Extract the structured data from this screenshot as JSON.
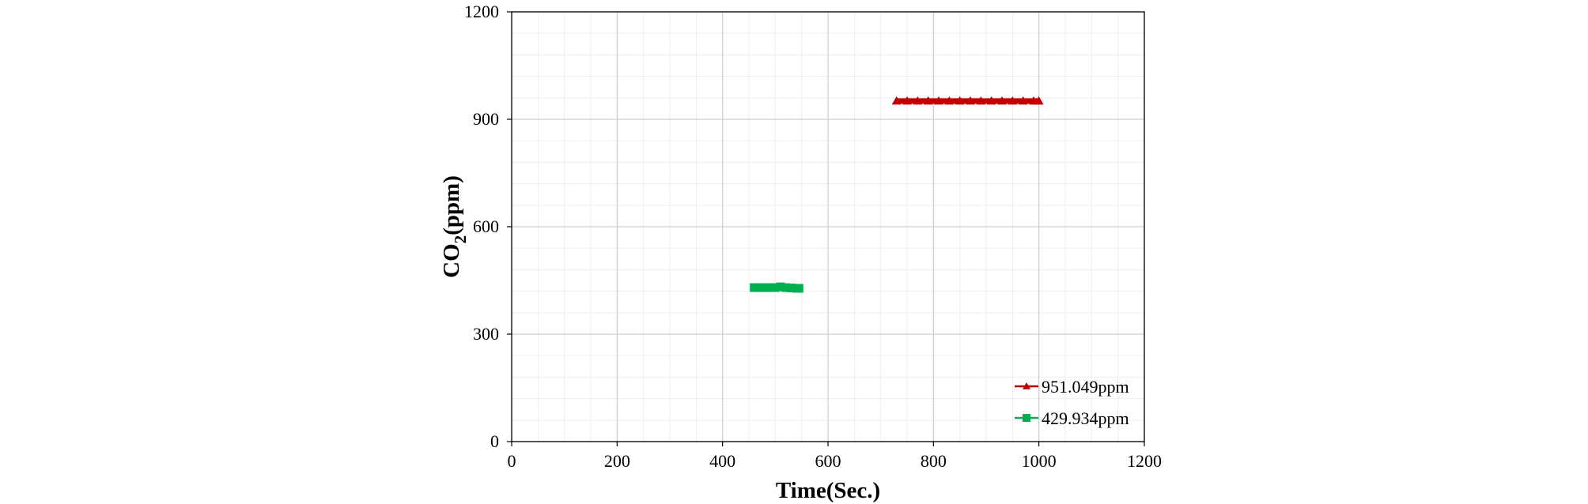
{
  "chart_data": {
    "type": "scatter",
    "xlabel": "Time(Sec.)",
    "ylabel": "CO2(ppm)",
    "ylabel_main": "CO",
    "ylabel_sub": "2",
    "ylabel_tail": "(ppm)",
    "xlim": [
      0,
      1200
    ],
    "ylim": [
      0,
      1200
    ],
    "xticks": [
      0,
      200,
      400,
      600,
      800,
      1000,
      1200
    ],
    "yticks": [
      0,
      300,
      600,
      900,
      1200
    ],
    "grid": true,
    "minor_grid": true,
    "legend_position": "bottom-right",
    "series": [
      {
        "name": "951.049ppm",
        "color": "#c00000",
        "marker": "triangle",
        "x": [
          730,
          750,
          770,
          790,
          810,
          830,
          850,
          870,
          890,
          910,
          930,
          950,
          970,
          990,
          1000
        ],
        "y": [
          951,
          951,
          951,
          951,
          951,
          951,
          951,
          951,
          951,
          951,
          951,
          951,
          951,
          951,
          951
        ]
      },
      {
        "name": "429.934ppm",
        "color": "#00b050",
        "marker": "square",
        "x": [
          460,
          470,
          480,
          490,
          500,
          510,
          520,
          530,
          540,
          545
        ],
        "y": [
          430,
          430,
          430,
          430,
          430,
          432,
          430,
          429,
          428,
          428
        ]
      }
    ]
  }
}
